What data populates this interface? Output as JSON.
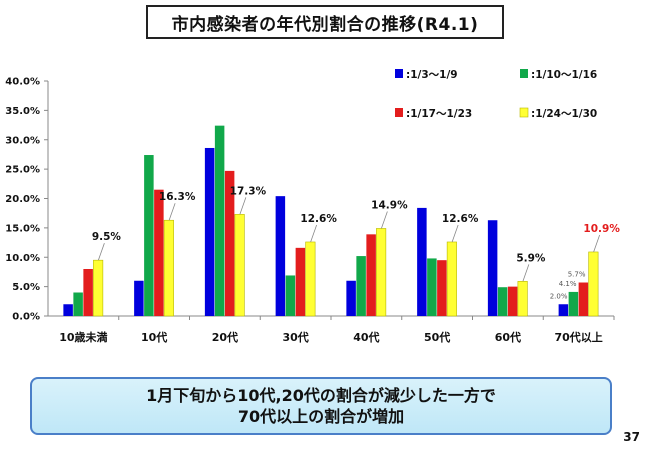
{
  "title": "市内感染者の年代別割合の推移(R4.1)",
  "summary": {
    "line1": "1月下旬から10代,20代の割合が減少した一方で",
    "line2": "70代以上の割合が増加"
  },
  "page_number": "37",
  "chart_data": {
    "type": "bar",
    "title": "",
    "xlabel": "",
    "ylabel": "",
    "ylim": [
      0,
      40
    ],
    "yticks": [
      "0.0%",
      "5.0%",
      "10.0%",
      "15.0%",
      "20.0%",
      "25.0%",
      "30.0%",
      "35.0%",
      "40.0%"
    ],
    "grid": false,
    "legend_position": "top-right",
    "categories": [
      "10歳未満",
      "10代",
      "20代",
      "30代",
      "40代",
      "50代",
      "60代",
      "70代以上"
    ],
    "series": [
      {
        "name": ":1/3～1/9",
        "color": "#0000dd",
        "values": [
          2.0,
          6.0,
          28.6,
          20.4,
          6.0,
          18.4,
          16.3,
          2.0
        ]
      },
      {
        "name": ":1/10～1/16",
        "color": "#11a84a",
        "values": [
          4.0,
          27.4,
          32.4,
          6.9,
          10.2,
          9.8,
          4.9,
          4.1
        ]
      },
      {
        "name": ":1/17～1/23",
        "color": "#e31d1d",
        "values": [
          8.0,
          21.5,
          24.7,
          11.6,
          13.9,
          9.5,
          5.0,
          5.7
        ]
      },
      {
        "name": ":1/24～1/30",
        "color": "#ffff33",
        "values": [
          9.5,
          16.3,
          17.3,
          12.6,
          14.9,
          12.6,
          5.9,
          10.9
        ]
      }
    ],
    "annotations": [
      {
        "category_index": 0,
        "series_index": 3,
        "text": "9.5%"
      },
      {
        "category_index": 1,
        "series_index": 3,
        "text": "16.3%"
      },
      {
        "category_index": 2,
        "series_index": 3,
        "text": "17.3%"
      },
      {
        "category_index": 3,
        "series_index": 3,
        "text": "12.6%"
      },
      {
        "category_index": 4,
        "series_index": 3,
        "text": "14.9%"
      },
      {
        "category_index": 5,
        "series_index": 3,
        "text": "12.6%"
      },
      {
        "category_index": 6,
        "series_index": 3,
        "text": "5.9%"
      },
      {
        "category_index": 7,
        "series_index": 3,
        "text": "10.9%",
        "color": "#e31d1d"
      },
      {
        "category_index": 7,
        "series_index": 0,
        "text": "2.0%",
        "small": true
      },
      {
        "category_index": 7,
        "series_index": 1,
        "text": "4.1%",
        "small": true
      },
      {
        "category_index": 7,
        "series_index": 2,
        "text": "5.7%",
        "small": true
      }
    ]
  }
}
